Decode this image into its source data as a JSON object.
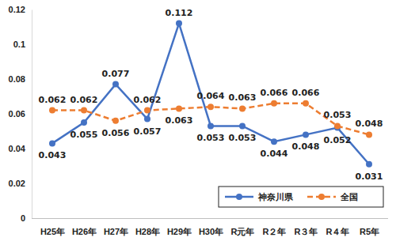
{
  "chart_data": {
    "type": "line",
    "categories": [
      "H25年",
      "H26年",
      "H27年",
      "H28年",
      "H29年",
      "H30年",
      "R元年",
      "R２年",
      "R３年",
      "R４年",
      "R5年"
    ],
    "series": [
      {
        "name": "神奈川県",
        "color": "#4472c4",
        "marker": "circle",
        "line_style": "solid",
        "values": [
          0.043,
          0.055,
          0.077,
          0.057,
          0.112,
          0.053,
          0.053,
          0.044,
          0.048,
          0.052,
          0.031
        ]
      },
      {
        "name": "全国",
        "color": "#ed7d31",
        "marker": "circle",
        "line_style": "dashed",
        "values": [
          0.062,
          0.062,
          0.056,
          0.062,
          0.063,
          0.064,
          0.063,
          0.066,
          0.066,
          0.053,
          0.048
        ]
      }
    ],
    "ylim": [
      0,
      0.12
    ],
    "yticks": [
      0,
      0.02,
      0.04,
      0.06,
      0.08,
      0.1,
      0.12
    ],
    "grid": false,
    "legend": "lower right",
    "data_labels": true
  }
}
